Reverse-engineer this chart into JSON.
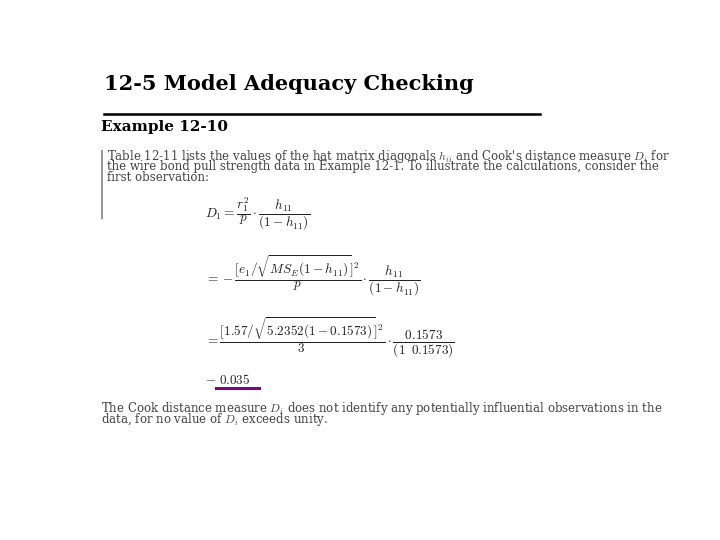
{
  "title": "12-5 Model Adequacy Checking",
  "subtitle": "Example 12-10",
  "bg_color": "#ffffff",
  "title_color": "#000000",
  "subtitle_color": "#000000",
  "body_text_color": "#444444",
  "intro_line1": "Table 12-11 lists the values of the hat matrix diagonals $h_{ii}$ and Cook's distance measure $D_i$ for",
  "intro_line2": "the wire bond pull strength data in Example 12-1. To illustrate the calculations, consider the",
  "intro_line3": "first observation:",
  "closing_line1": "The Cook distance measure $D_i$ does not identify any potentially influential observations in the",
  "closing_line2": "data, for no value of $D_i$ exceeds unity.",
  "underline_color": "#800080",
  "left_bar_color": "#999999",
  "title_fontsize": 15,
  "subtitle_fontsize": 11,
  "body_fontsize": 8.5,
  "eq_fontsize": 9.5
}
